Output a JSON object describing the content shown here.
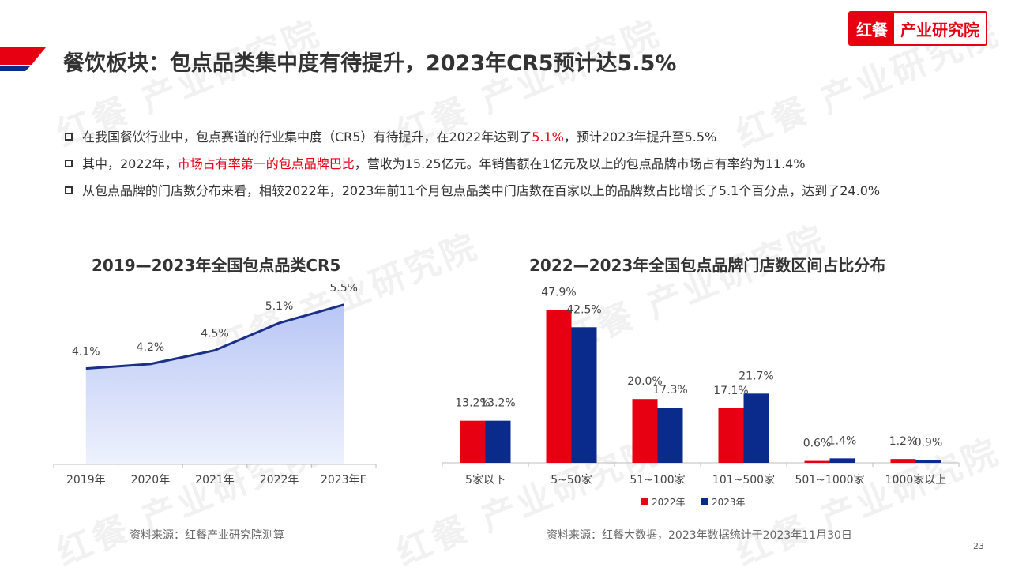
{
  "brand": {
    "mark": "红餐",
    "name": "产业研究院",
    "watermark": "红餐 产业研究院"
  },
  "page_title": "餐饮板块：包点品类集中度有待提升，2023年CR5预计达5.5%",
  "bullets": [
    {
      "pre": "在我国餐饮行业中，包点赛道的行业集中度（CR5）有待提升，在2022年达到了",
      "hl": "5.1%",
      "post": "，预计2023年提升至5.5%"
    },
    {
      "pre": "其中，2022年，",
      "hl": "市场占有率第一的包点品牌巴比",
      "post": "，营收为15.25亿元。年销售额在1亿元及以上的包点品牌市场占有率约为11.4%"
    },
    {
      "pre": "从包点品牌的门店数分布来看，相较2022年，2023年前11个月包点品类中门店数在百家以上的品牌数占比增长了5.1个百分点，达到了24.0%",
      "hl": "",
      "post": ""
    }
  ],
  "colors": {
    "red": "#e60012",
    "navy": "#0a2b8c",
    "line": "#1a2f86",
    "area_top": "#b8c6f5",
    "area_bottom": "#eef2fd"
  },
  "chart_data": [
    {
      "type": "area",
      "title": "2019—2023年全国包点品类CR5",
      "categories": [
        "2019年",
        "2020年",
        "2021年",
        "2022年",
        "2023年E"
      ],
      "values": [
        4.1,
        4.2,
        4.5,
        5.1,
        5.5
      ],
      "labels": [
        "4.1%",
        "4.2%",
        "4.5%",
        "5.1%",
        "5.5%"
      ],
      "ylim": [
        2.0,
        5.6
      ],
      "source": "资料来源：红餐产业研究院测算"
    },
    {
      "type": "bar",
      "title": "2022—2023年全国包点品牌门店数区间占比分布",
      "categories": [
        "5家以下",
        "5~50家",
        "51~100家",
        "101~500家",
        "501~1000家",
        "1000家以上"
      ],
      "series": [
        {
          "name": "2022年",
          "values": [
            13.2,
            47.9,
            20.0,
            17.1,
            0.6,
            1.2
          ],
          "labels": [
            "13.2%",
            "47.9%",
            "20.0%",
            "17.1%",
            "0.6%",
            "1.2%"
          ]
        },
        {
          "name": "2023年",
          "values": [
            13.2,
            42.5,
            17.3,
            21.7,
            1.4,
            0.9
          ],
          "labels": [
            "13.2%",
            "42.5%",
            "17.3%",
            "21.7%",
            "1.4%",
            "0.9%"
          ]
        }
      ],
      "ylim": [
        0,
        50
      ],
      "legend": "bottom",
      "source": "资料来源：红餐大数据，2023年数据统计于2023年11月30日"
    }
  ],
  "page_number": "23"
}
